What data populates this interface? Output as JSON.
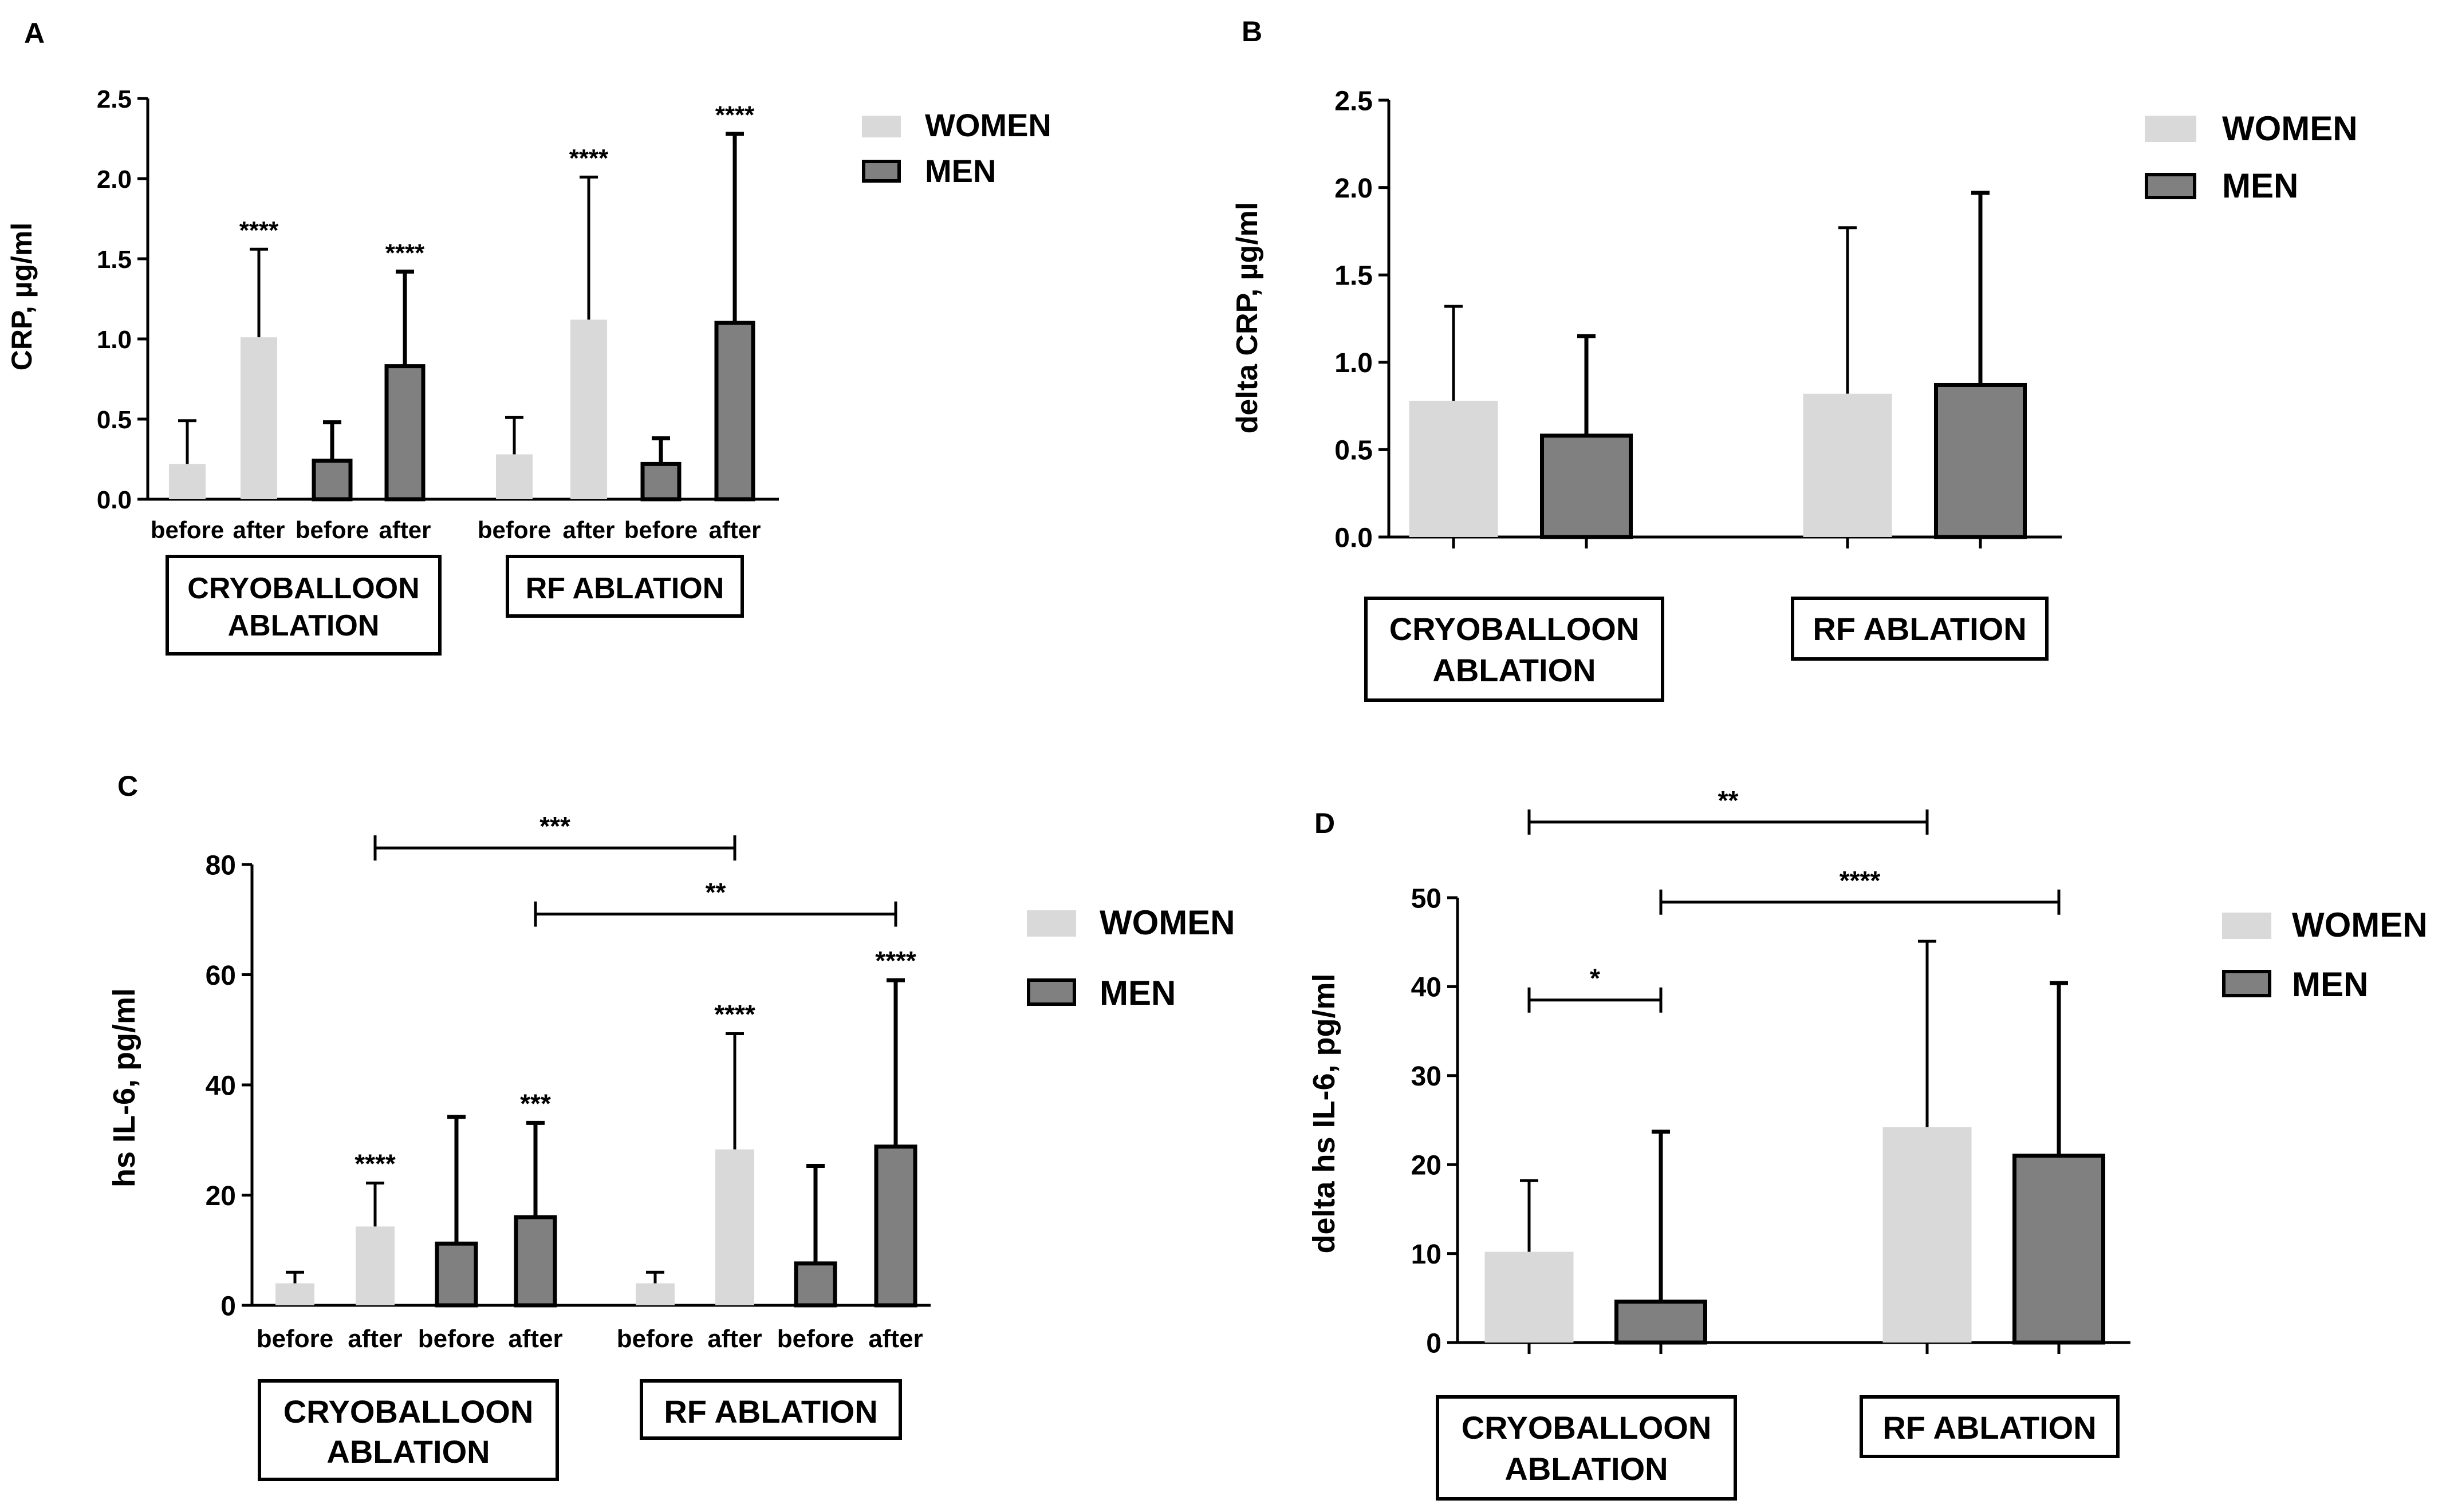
{
  "colors": {
    "women": "#d9d9d9",
    "men": "#808080",
    "axis": "#000000"
  },
  "legend": {
    "women": "WOMEN",
    "men": "MEN"
  },
  "chart_data": [
    {
      "panel": "A",
      "type": "bar",
      "ylabel": "CRP, µg/ml",
      "ylim": [
        0,
        2.5
      ],
      "yticks": [
        "0.0",
        "0.5",
        "1.0",
        "1.5",
        "2.0",
        "2.5"
      ],
      "groups": [
        {
          "label": "CRYOBALLOON ABLATION",
          "label_lines": [
            "CRYOBALLOON",
            "ABLATION"
          ]
        },
        {
          "label": "RF ABLATION",
          "label_lines": [
            "RF ABLATION"
          ]
        }
      ],
      "bars": [
        {
          "group": 0,
          "series": "WOMEN",
          "tick": "before",
          "value": 0.22,
          "error": 0.49,
          "sig": ""
        },
        {
          "group": 0,
          "series": "WOMEN",
          "tick": "after",
          "value": 1.01,
          "error": 1.56,
          "sig": "****"
        },
        {
          "group": 0,
          "series": "MEN",
          "tick": "before",
          "value": 0.24,
          "error": 0.48,
          "sig": ""
        },
        {
          "group": 0,
          "series": "MEN",
          "tick": "after",
          "value": 0.83,
          "error": 1.42,
          "sig": "****"
        },
        {
          "group": 1,
          "series": "WOMEN",
          "tick": "before",
          "value": 0.28,
          "error": 0.51,
          "sig": ""
        },
        {
          "group": 1,
          "series": "WOMEN",
          "tick": "after",
          "value": 1.12,
          "error": 2.01,
          "sig": "****"
        },
        {
          "group": 1,
          "series": "MEN",
          "tick": "before",
          "value": 0.22,
          "error": 0.38,
          "sig": ""
        },
        {
          "group": 1,
          "series": "MEN",
          "tick": "after",
          "value": 1.1,
          "error": 2.28,
          "sig": "****"
        }
      ],
      "brackets": []
    },
    {
      "panel": "B",
      "type": "bar",
      "ylabel": "delta CRP, µg/ml",
      "ylim": [
        0,
        2.5
      ],
      "yticks": [
        "0.0",
        "0.5",
        "1.0",
        "1.5",
        "2.0",
        "2.5"
      ],
      "groups": [
        {
          "label": "CRYOBALLOON ABLATION",
          "label_lines": [
            "CRYOBALLOON",
            "ABLATION"
          ]
        },
        {
          "label": "RF ABLATION",
          "label_lines": [
            "RF ABLATION"
          ]
        }
      ],
      "bars": [
        {
          "group": 0,
          "series": "WOMEN",
          "tick": "",
          "value": 0.78,
          "error": 1.32,
          "sig": ""
        },
        {
          "group": 0,
          "series": "MEN",
          "tick": "",
          "value": 0.58,
          "error": 1.15,
          "sig": ""
        },
        {
          "group": 1,
          "series": "WOMEN",
          "tick": "",
          "value": 0.82,
          "error": 1.77,
          "sig": ""
        },
        {
          "group": 1,
          "series": "MEN",
          "tick": "",
          "value": 0.87,
          "error": 1.97,
          "sig": ""
        }
      ],
      "brackets": []
    },
    {
      "panel": "C",
      "type": "bar",
      "ylabel": "hs IL-6, pg/ml",
      "ylim": [
        0,
        80
      ],
      "yticks": [
        "0",
        "20",
        "40",
        "60",
        "80"
      ],
      "groups": [
        {
          "label": "CRYOBALLOON ABLATION",
          "label_lines": [
            "CRYOBALLOON",
            "ABLATION"
          ]
        },
        {
          "label": "RF ABLATION",
          "label_lines": [
            "RF ABLATION"
          ]
        }
      ],
      "bars": [
        {
          "group": 0,
          "series": "WOMEN",
          "tick": "before",
          "value": 4.0,
          "error": 6.0,
          "sig": ""
        },
        {
          "group": 0,
          "series": "WOMEN",
          "tick": "after",
          "value": 14.3,
          "error": 22.2,
          "sig": "****"
        },
        {
          "group": 0,
          "series": "MEN",
          "tick": "before",
          "value": 11.2,
          "error": 34.2,
          "sig": ""
        },
        {
          "group": 0,
          "series": "MEN",
          "tick": "after",
          "value": 16.0,
          "error": 33.1,
          "sig": "***"
        },
        {
          "group": 1,
          "series": "WOMEN",
          "tick": "before",
          "value": 4.0,
          "error": 6.0,
          "sig": ""
        },
        {
          "group": 1,
          "series": "WOMEN",
          "tick": "after",
          "value": 28.3,
          "error": 49.3,
          "sig": "****"
        },
        {
          "group": 1,
          "series": "MEN",
          "tick": "before",
          "value": 7.6,
          "error": 25.3,
          "sig": ""
        },
        {
          "group": 1,
          "series": "MEN",
          "tick": "after",
          "value": 28.8,
          "error": 59.0,
          "sig": "****"
        }
      ],
      "brackets": [
        {
          "from": 1,
          "to": 5,
          "level": 83,
          "label": "***"
        },
        {
          "from": 3,
          "to": 7,
          "level": 71,
          "label": "**"
        }
      ]
    },
    {
      "panel": "D",
      "type": "bar",
      "ylabel": "delta hs IL-6, pg/ml",
      "ylim": [
        0,
        50
      ],
      "yticks": [
        "0",
        "10",
        "20",
        "30",
        "40",
        "50"
      ],
      "groups": [
        {
          "label": "CRYOBALLOON ABLATION",
          "label_lines": [
            "CRYOBALLOON",
            "ABLATION"
          ]
        },
        {
          "label": "RF ABLATION",
          "label_lines": [
            "RF ABLATION"
          ]
        }
      ],
      "bars": [
        {
          "group": 0,
          "series": "WOMEN",
          "tick": "",
          "value": 10.2,
          "error": 18.2,
          "sig": ""
        },
        {
          "group": 0,
          "series": "MEN",
          "tick": "",
          "value": 4.6,
          "error": 23.7,
          "sig": ""
        },
        {
          "group": 1,
          "series": "WOMEN",
          "tick": "",
          "value": 24.2,
          "error": 45.1,
          "sig": ""
        },
        {
          "group": 1,
          "series": "MEN",
          "tick": "",
          "value": 21.0,
          "error": 40.4,
          "sig": ""
        }
      ],
      "brackets": [
        {
          "from": 0,
          "to": 1,
          "level": 38.5,
          "label": "*"
        },
        {
          "from": 0,
          "to": 2,
          "level": 58.5,
          "label": "**"
        },
        {
          "from": 1,
          "to": 3,
          "level": 49.5,
          "label": "****"
        }
      ]
    }
  ]
}
